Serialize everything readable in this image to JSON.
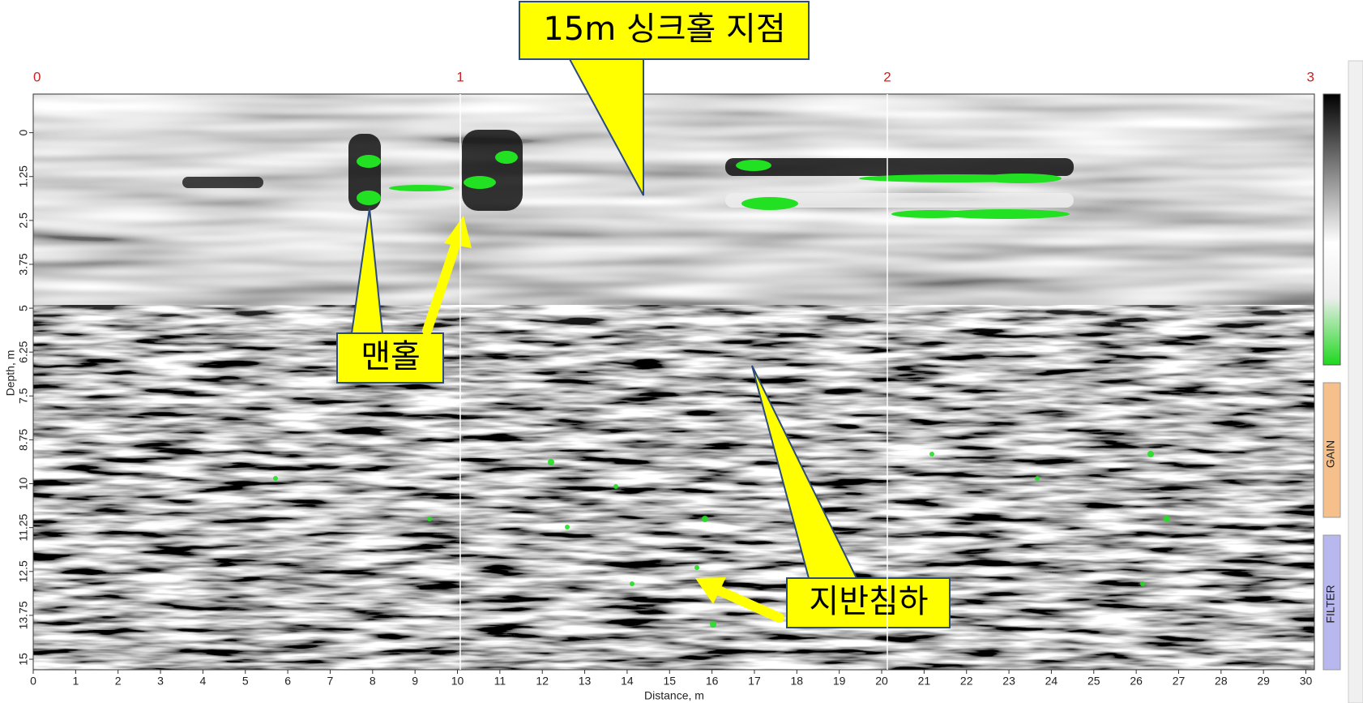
{
  "chart_data": {
    "type": "radargram",
    "xlabel": "Distance, m",
    "ylabel": "Depth, m",
    "xlim": [
      0,
      30.2
    ],
    "xticks": [
      0,
      1,
      2,
      3,
      4,
      5,
      6,
      7,
      8,
      9,
      10,
      11,
      12,
      13,
      14,
      15,
      16,
      17,
      18,
      19,
      20,
      21,
      22,
      23,
      24,
      25,
      26,
      27,
      28,
      29,
      30
    ],
    "ylim": [
      -1.1,
      15.3
    ],
    "yticks": [
      0,
      1.25,
      2.5,
      3.75,
      5,
      6.25,
      7.5,
      8.75,
      10,
      11.25,
      12.5,
      13.75,
      15
    ],
    "x2lim": [
      0,
      3
    ],
    "x2ticks": [
      0,
      1,
      2,
      3
    ],
    "x2color": "#cc2222",
    "annotations": [
      {
        "text": "15m 싱크홀 지점"
      },
      {
        "text": "맨홀"
      },
      {
        "text": "지반침하"
      }
    ],
    "side_panels": [
      {
        "label": "GAIN"
      },
      {
        "label": "FILTER"
      }
    ]
  }
}
